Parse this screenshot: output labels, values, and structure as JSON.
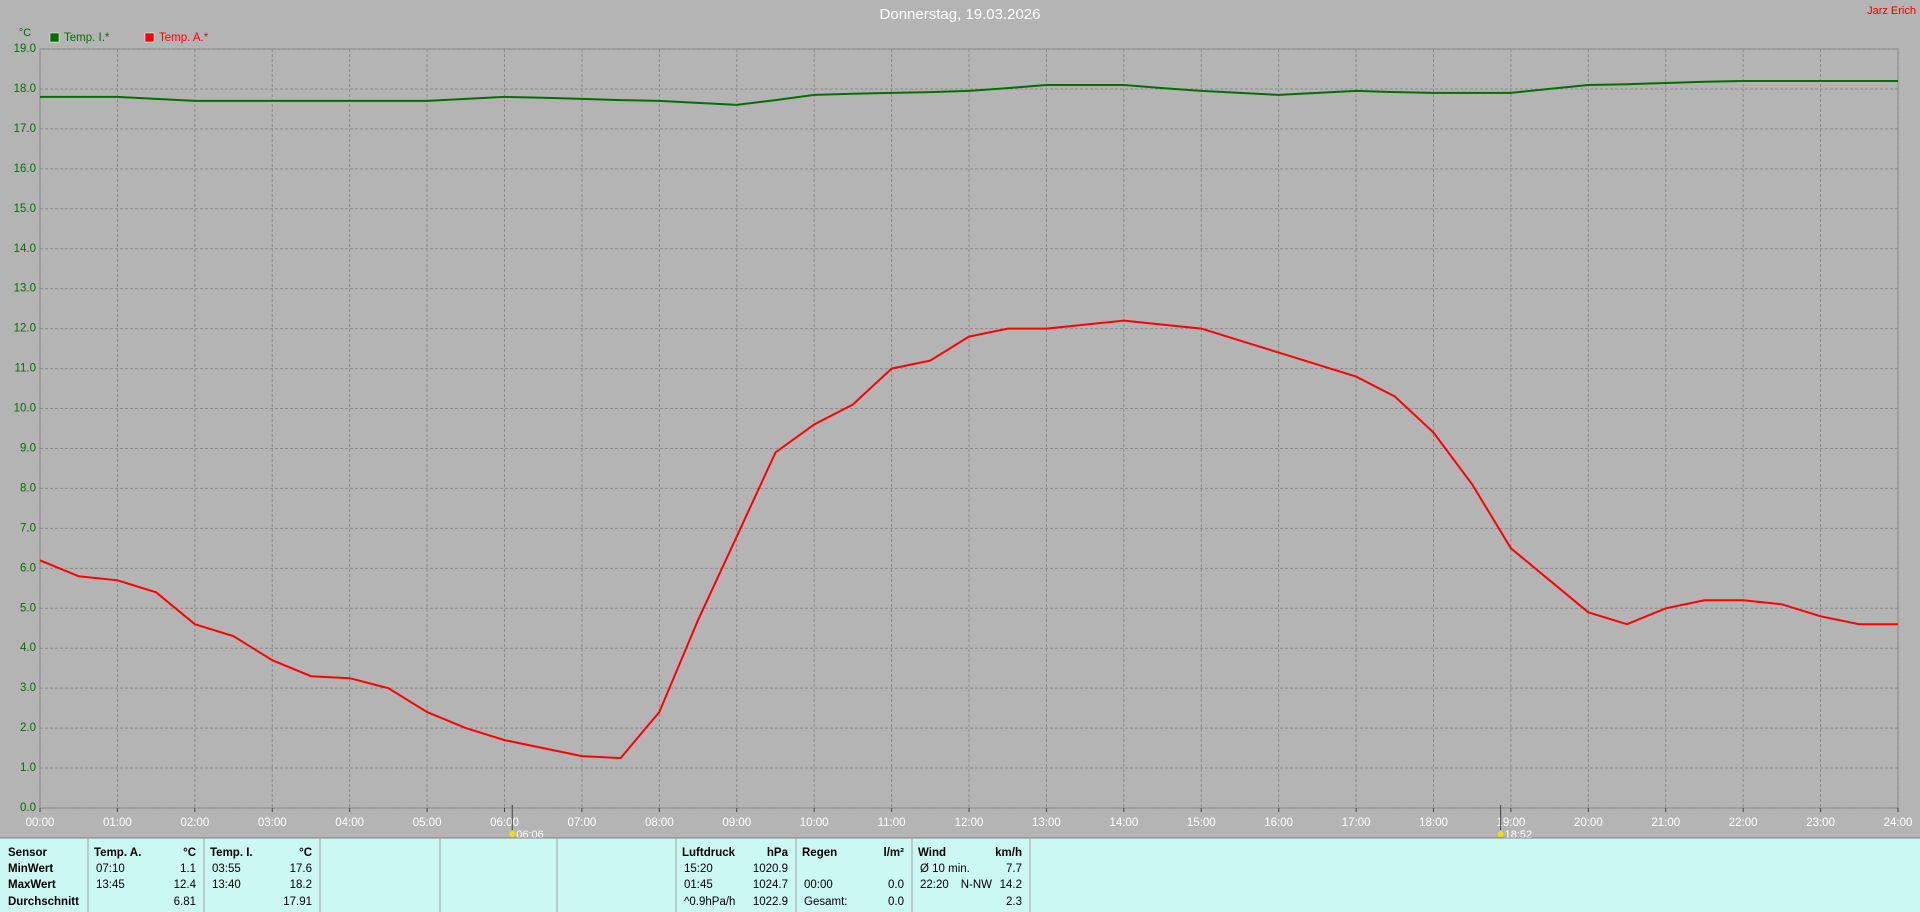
{
  "chart_data": {
    "type": "line",
    "title": "Donnerstag, 19.03.2026",
    "author": "Jarz Erich",
    "y_label": "°C",
    "x": [
      0,
      0.5,
      1,
      1.5,
      2,
      2.5,
      3,
      3.5,
      4,
      4.5,
      5,
      5.5,
      6,
      6.5,
      7,
      7.5,
      8,
      8.5,
      9,
      9.5,
      10,
      10.5,
      11,
      11.5,
      12,
      12.5,
      13,
      13.5,
      14,
      14.5,
      15,
      15.5,
      16,
      16.5,
      17,
      17.5,
      18,
      18.5,
      19,
      19.5,
      20,
      20.5,
      21,
      21.5,
      22,
      22.5,
      23,
      23.5,
      24
    ],
    "series": [
      {
        "name": "Temp. I.*",
        "color": "#007000",
        "values": [
          17.8,
          17.8,
          17.8,
          17.75,
          17.7,
          17.7,
          17.7,
          17.7,
          17.7,
          17.7,
          17.7,
          17.75,
          17.8,
          17.78,
          17.75,
          17.72,
          17.7,
          17.65,
          17.6,
          17.72,
          17.85,
          17.88,
          17.9,
          17.92,
          17.95,
          18.02,
          18.1,
          18.1,
          18.1,
          18.02,
          17.95,
          17.9,
          17.85,
          17.9,
          17.95,
          17.92,
          17.9,
          17.9,
          17.9,
          18.0,
          18.1,
          18.12,
          18.15,
          18.18,
          18.2,
          18.2,
          18.2,
          18.2,
          18.2
        ]
      },
      {
        "name": "Temp. A.*",
        "color": "#ff0000",
        "values": [
          6.2,
          5.8,
          5.7,
          5.4,
          4.6,
          4.3,
          3.7,
          3.3,
          3.25,
          3.0,
          2.4,
          2.0,
          1.7,
          1.5,
          1.3,
          1.25,
          2.4,
          4.7,
          6.8,
          8.9,
          9.6,
          10.1,
          11.0,
          11.2,
          11.8,
          12.0,
          12.0,
          12.1,
          12.2,
          12.1,
          12.0,
          11.7,
          11.4,
          11.1,
          10.8,
          10.3,
          9.4,
          8.1,
          6.5,
          5.7,
          4.9,
          4.6,
          5.0,
          5.2,
          5.2,
          5.1,
          4.8,
          4.6,
          4.6
        ]
      }
    ],
    "xlim": [
      0,
      24
    ],
    "xticks": [
      {
        "value": 0,
        "label": "00:00"
      },
      {
        "value": 1,
        "label": "01:00"
      },
      {
        "value": 2,
        "label": "02:00"
      },
      {
        "value": 3,
        "label": "03:00"
      },
      {
        "value": 4,
        "label": "04:00"
      },
      {
        "value": 5,
        "label": "05:00"
      },
      {
        "value": 6,
        "label": "06:00"
      },
      {
        "value": 7,
        "label": "07:00"
      },
      {
        "value": 8,
        "label": "08:00"
      },
      {
        "value": 9,
        "label": "09:00"
      },
      {
        "value": 10,
        "label": "10:00"
      },
      {
        "value": 11,
        "label": "11:00"
      },
      {
        "value": 12,
        "label": "12:00"
      },
      {
        "value": 13,
        "label": "13:00"
      },
      {
        "value": 14,
        "label": "14:00"
      },
      {
        "value": 15,
        "label": "15:00"
      },
      {
        "value": 16,
        "label": "16:00"
      },
      {
        "value": 17,
        "label": "17:00"
      },
      {
        "value": 18,
        "label": "18:00"
      },
      {
        "value": 19,
        "label": "19:00"
      },
      {
        "value": 20,
        "label": "20:00"
      },
      {
        "value": 21,
        "label": "21:00"
      },
      {
        "value": 22,
        "label": "22:00"
      },
      {
        "value": 23,
        "label": "23:00"
      },
      {
        "value": 24,
        "label": "24:00"
      }
    ],
    "ylim": [
      0,
      19
    ],
    "yticks": [
      {
        "value": 0,
        "label": "0.0"
      },
      {
        "value": 1,
        "label": "1.0"
      },
      {
        "value": 2,
        "label": "2.0"
      },
      {
        "value": 3,
        "label": "3.0"
      },
      {
        "value": 4,
        "label": "4.0"
      },
      {
        "value": 5,
        "label": "5.0"
      },
      {
        "value": 6,
        "label": "6.0"
      },
      {
        "value": 7,
        "label": "7.0"
      },
      {
        "value": 8,
        "label": "8.0"
      },
      {
        "value": 9,
        "label": "9.0"
      },
      {
        "value": 10,
        "label": "10.0"
      },
      {
        "value": 11,
        "label": "11.0"
      },
      {
        "value": 12,
        "label": "12.0"
      },
      {
        "value": 13,
        "label": "13.0"
      },
      {
        "value": 14,
        "label": "14.0"
      },
      {
        "value": 15,
        "label": "15.0"
      },
      {
        "value": 16,
        "label": "16.0"
      },
      {
        "value": 17,
        "label": "17.0"
      },
      {
        "value": 18,
        "label": "18.0"
      },
      {
        "value": 19,
        "label": "19.0"
      }
    ],
    "grid": true,
    "legend": "top-left",
    "annotations": [
      {
        "x": 6.1,
        "label": "06:06"
      },
      {
        "x": 18.8667,
        "label": "18:52"
      }
    ]
  },
  "stats_table": {
    "row_header": "Sensor",
    "row_labels": [
      "MinWert",
      "MaxWert",
      "Durchschnitt"
    ],
    "groups": [
      {
        "name": "Temp. A.",
        "unit": "°C",
        "rows": [
          {
            "time": "07:10",
            "value": "1.1"
          },
          {
            "time": "13:45",
            "value": "12.4"
          },
          {
            "value": "6.81"
          }
        ]
      },
      {
        "name": "Temp. I.",
        "unit": "°C",
        "rows": [
          {
            "time": "03:55",
            "value": "17.6"
          },
          {
            "time": "13:40",
            "value": "18.2"
          },
          {
            "value": "17.91"
          }
        ]
      },
      {
        "name": "Luftdruck",
        "unit": "hPa",
        "rows": [
          {
            "time": "15:20",
            "value": "1020.9"
          },
          {
            "time": "01:45",
            "value": "1024.7"
          },
          {
            "time": "^0.9hPa/h",
            "value": "1022.9"
          }
        ]
      },
      {
        "name": "Regen",
        "unit": "l/m²",
        "rows": [
          null,
          {
            "time": "00:00",
            "value": "0.0"
          },
          {
            "time": "Gesamt:",
            "value": "0.0"
          }
        ]
      },
      {
        "name": "Wind",
        "unit": "km/h",
        "rows": [
          {
            "time": "Ø 10 min.",
            "value": "7.7"
          },
          {
            "time": "22:20",
            "dir": "N-NW",
            "value": "14.2"
          },
          {
            "value": "2.3"
          }
        ]
      }
    ]
  }
}
